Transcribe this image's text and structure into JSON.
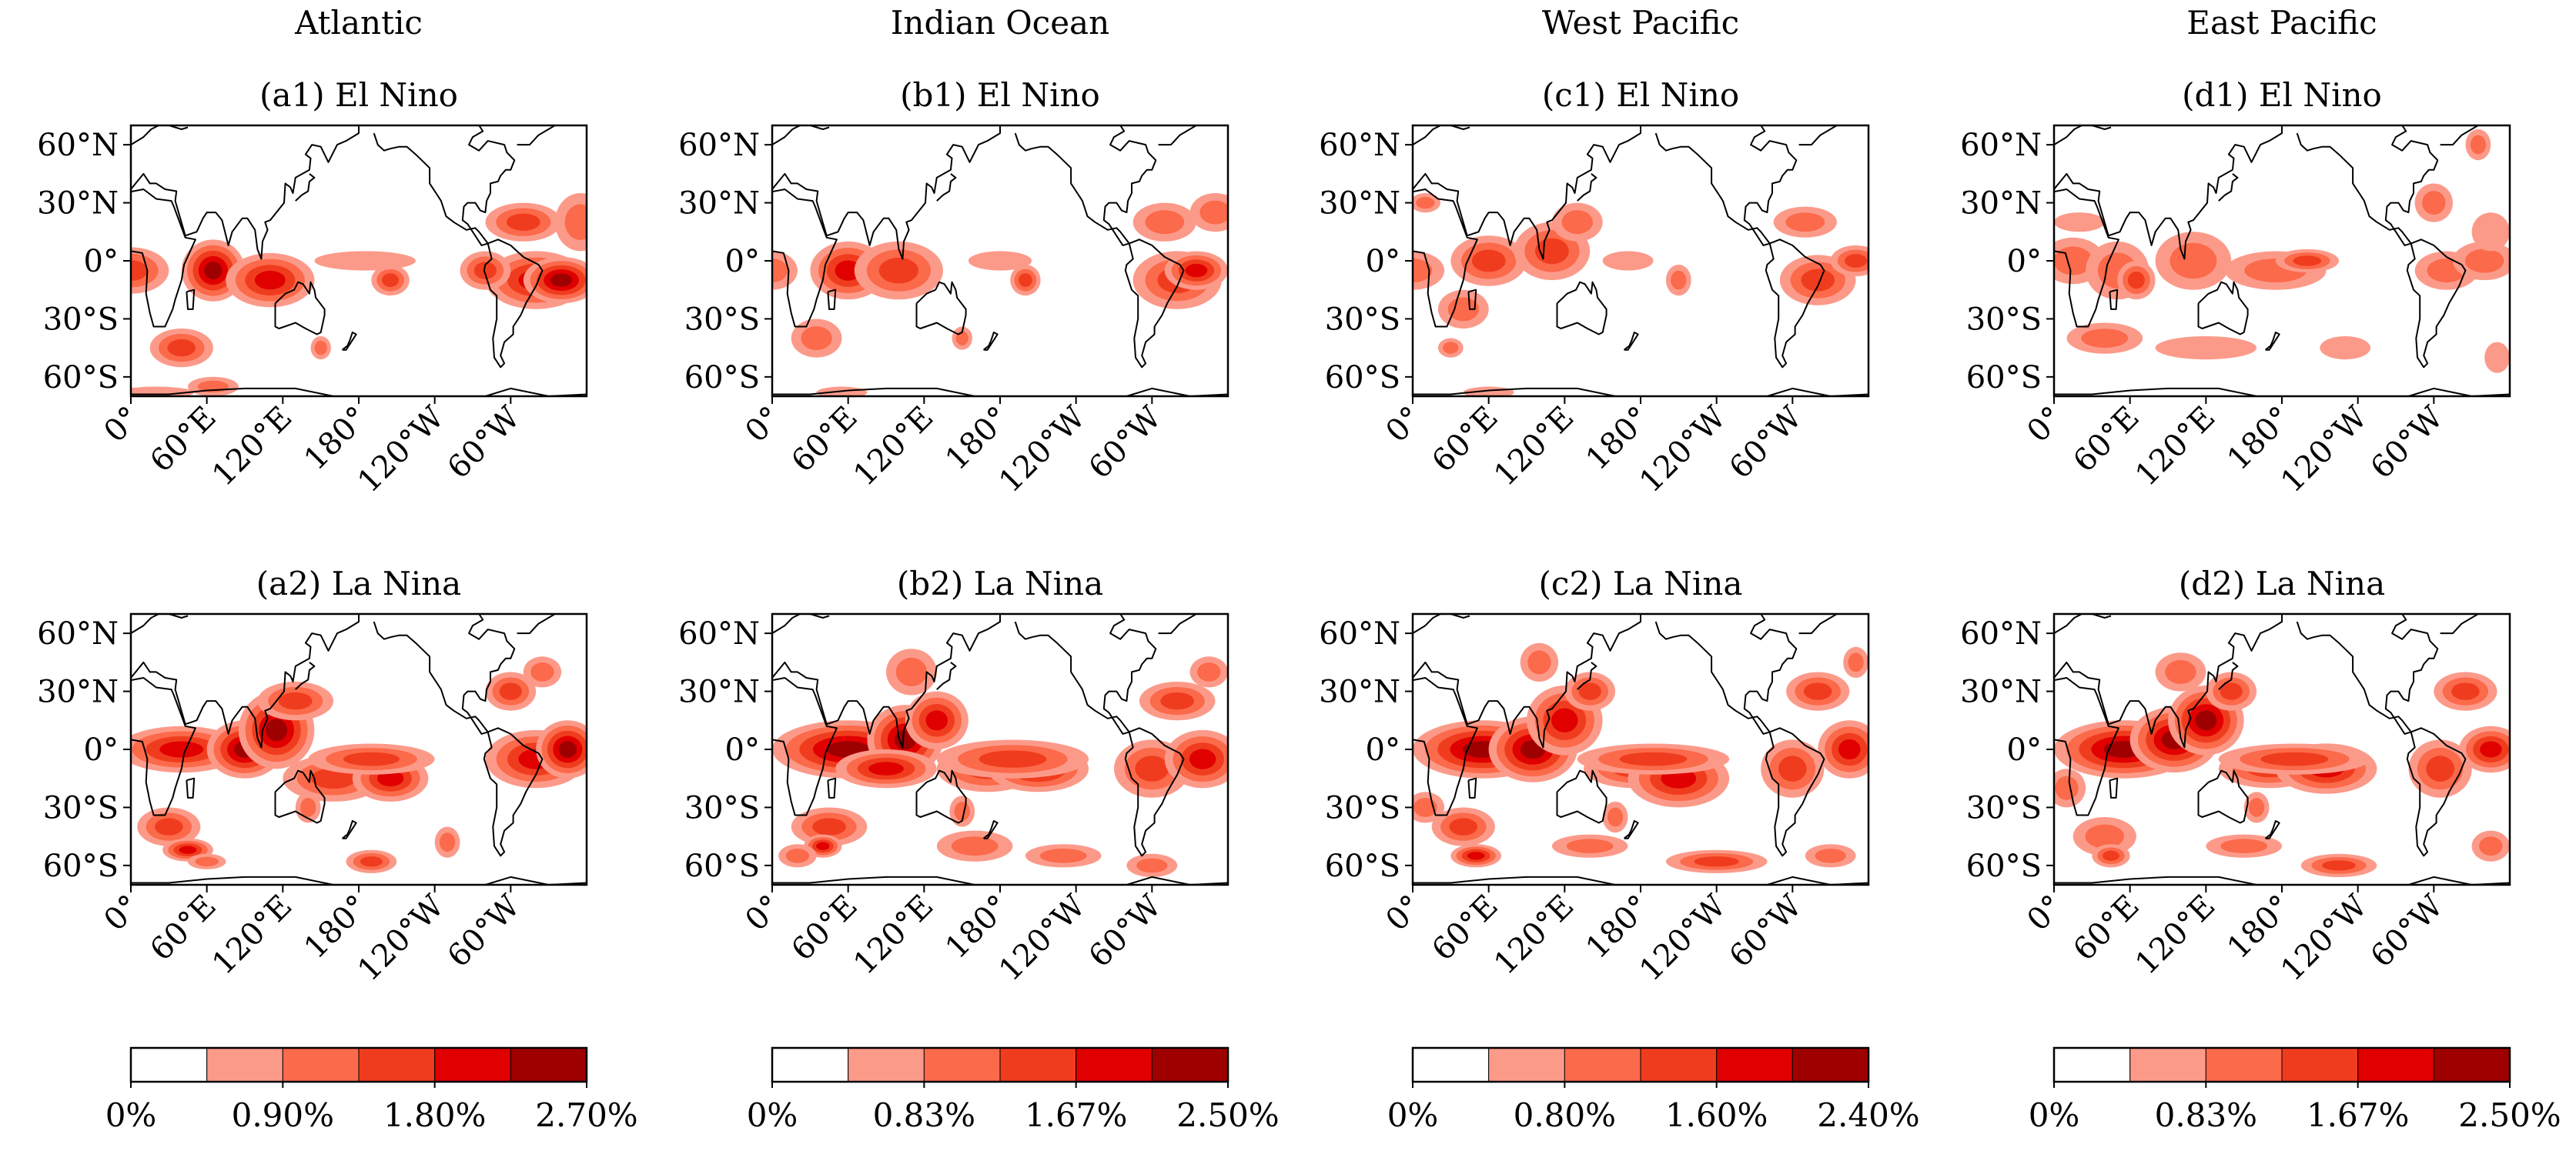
{
  "figure": {
    "columns": [
      {
        "title": "Atlantic",
        "colorbar": {
          "ticks": [
            "0%",
            "0.90%",
            "1.80%",
            "2.70%"
          ]
        }
      },
      {
        "title": "Indian Ocean",
        "colorbar": {
          "ticks": [
            "0%",
            "0.83%",
            "1.67%",
            "2.50%"
          ]
        }
      },
      {
        "title": "West Pacific",
        "colorbar": {
          "ticks": [
            "0%",
            "0.80%",
            "1.60%",
            "2.40%"
          ]
        }
      },
      {
        "title": "East Pacific",
        "colorbar": {
          "ticks": [
            "0%",
            "0.83%",
            "1.67%",
            "2.50%"
          ]
        }
      }
    ],
    "panel_titles": [
      [
        "(a1) El Nino",
        "(b1) El Nino",
        "(c1) El Nino",
        "(d1) El Nino"
      ],
      [
        "(a2) La Nina",
        "(b2) La Nina",
        "(c2) La Nina",
        "(d2) La Nina"
      ]
    ],
    "lat_ticks": [
      "60°N",
      "30°N",
      "0°",
      "30°S",
      "60°S"
    ],
    "lon_ticks": [
      "0°",
      "60°E",
      "120°E",
      "180°",
      "120°W",
      "60°W"
    ]
  },
  "chart_data": {
    "type": "heatmap",
    "description_of_fields": "filled contour maps of frequency percentage",
    "x_range": [
      0,
      360
    ],
    "y_range": [
      -70,
      70
    ],
    "lat_tick_values": [
      60,
      30,
      0,
      -30,
      -60
    ],
    "lon_tick_values": [
      0,
      60,
      120,
      180,
      240,
      300
    ],
    "colors": [
      "#ffffff",
      "#fc9a8a",
      "#fb6a4a",
      "#f03c1e",
      "#e00000",
      "#9e0000"
    ],
    "levels": [
      [
        0,
        0.45,
        0.9,
        1.35,
        1.8,
        2.25,
        2.7
      ],
      [
        0,
        0.42,
        0.83,
        1.25,
        1.67,
        2.08,
        2.5
      ],
      [
        0,
        0.4,
        0.8,
        1.2,
        1.6,
        2.0,
        2.4
      ],
      [
        0,
        0.42,
        0.83,
        1.25,
        1.67,
        2.08,
        2.5
      ]
    ],
    "panels": [
      [
        {
          "blobs": [
            [
              0,
              -5,
              30,
              12,
              3
            ],
            [
              65,
              -5,
              25,
              16,
              5
            ],
            [
              110,
              -10,
              35,
              14,
              4
            ],
            [
              40,
              -45,
              25,
              10,
              3
            ],
            [
              150,
              -45,
              8,
              6,
              2
            ],
            [
              205,
              -10,
              15,
              8,
              3
            ],
            [
              185,
              0,
              40,
              5,
              1
            ],
            [
              320,
              -10,
              40,
              15,
              4
            ],
            [
              310,
              20,
              30,
              10,
              3
            ],
            [
              355,
              20,
              20,
              15,
              2
            ],
            [
              340,
              -10,
              30,
              12,
              5
            ],
            [
              280,
              -5,
              20,
              10,
              3
            ],
            [
              65,
              -65,
              20,
              5,
              2
            ],
            [
              20,
              -68,
              30,
              3,
              1
            ]
          ]
        },
        {
          "blobs": [
            [
              0,
              -5,
              20,
              10,
              2
            ],
            [
              60,
              -5,
              30,
              15,
              4
            ],
            [
              100,
              -5,
              35,
              15,
              3
            ],
            [
              35,
              -40,
              20,
              10,
              2
            ],
            [
              150,
              -40,
              8,
              6,
              2
            ],
            [
              200,
              -10,
              12,
              8,
              3
            ],
            [
              180,
              0,
              25,
              5,
              1
            ],
            [
              320,
              -10,
              35,
              15,
              3
            ],
            [
              310,
              20,
              25,
              10,
              2
            ],
            [
              350,
              25,
              20,
              10,
              2
            ],
            [
              335,
              -5,
              25,
              10,
              4
            ],
            [
              55,
              -68,
              20,
              3,
              1
            ]
          ]
        },
        {
          "blobs": [
            [
              0,
              -5,
              25,
              10,
              2
            ],
            [
              60,
              0,
              30,
              13,
              3
            ],
            [
              110,
              5,
              30,
              15,
              3
            ],
            [
              130,
              20,
              20,
              10,
              2
            ],
            [
              40,
              -25,
              20,
              10,
              2
            ],
            [
              30,
              -45,
              10,
              5,
              2
            ],
            [
              210,
              -10,
              10,
              8,
              2
            ],
            [
              170,
              0,
              20,
              5,
              1
            ],
            [
              320,
              -10,
              30,
              13,
              3
            ],
            [
              310,
              20,
              25,
              8,
              2
            ],
            [
              350,
              0,
              20,
              8,
              3
            ],
            [
              10,
              30,
              12,
              5,
              2
            ],
            [
              60,
              -68,
              20,
              3,
              1
            ]
          ]
        },
        {
          "blobs": [
            [
              15,
              0,
              25,
              12,
              2
            ],
            [
              50,
              -5,
              25,
              15,
              2
            ],
            [
              65,
              -10,
              15,
              10,
              3
            ],
            [
              110,
              0,
              30,
              15,
              2
            ],
            [
              175,
              -5,
              40,
              10,
              2
            ],
            [
              200,
              0,
              25,
              6,
              3
            ],
            [
              40,
              -40,
              30,
              8,
              2
            ],
            [
              120,
              -45,
              40,
              6,
              1
            ],
            [
              230,
              -45,
              20,
              6,
              1
            ],
            [
              310,
              -5,
              25,
              10,
              2
            ],
            [
              340,
              0,
              25,
              10,
              2
            ],
            [
              300,
              30,
              15,
              10,
              2
            ],
            [
              345,
              15,
              15,
              10,
              1
            ],
            [
              20,
              20,
              20,
              5,
              1
            ],
            [
              335,
              60,
              10,
              8,
              2
            ],
            [
              350,
              -50,
              10,
              8,
              1
            ]
          ]
        }
      ],
      [
        {
          "blobs": [
            [
              40,
              0,
              50,
              12,
              4
            ],
            [
              90,
              0,
              30,
              15,
              5
            ],
            [
              115,
              10,
              30,
              20,
              5
            ],
            [
              130,
              25,
              30,
              10,
              3
            ],
            [
              160,
              -15,
              40,
              12,
              3
            ],
            [
              205,
              -15,
              30,
              12,
              4
            ],
            [
              190,
              -5,
              50,
              8,
              3
            ],
            [
              320,
              -5,
              40,
              15,
              4
            ],
            [
              345,
              0,
              25,
              15,
              5
            ],
            [
              300,
              30,
              20,
              10,
              3
            ],
            [
              325,
              40,
              15,
              8,
              2
            ],
            [
              30,
              -40,
              25,
              10,
              3
            ],
            [
              45,
              -52,
              20,
              6,
              4
            ],
            [
              190,
              -58,
              20,
              6,
              3
            ],
            [
              250,
              -48,
              10,
              8,
              2
            ],
            [
              60,
              -58,
              15,
              4,
              2
            ],
            [
              140,
              -30,
              10,
              8,
              2
            ]
          ]
        },
        {
          "blobs": [
            [
              60,
              0,
              60,
              15,
              5
            ],
            [
              105,
              5,
              30,
              18,
              5
            ],
            [
              130,
              15,
              25,
              15,
              4
            ],
            [
              90,
              -10,
              40,
              10,
              4
            ],
            [
              170,
              -10,
              40,
              12,
              3
            ],
            [
              210,
              -10,
              40,
              12,
              4
            ],
            [
              190,
              -5,
              60,
              10,
              3
            ],
            [
              300,
              -10,
              30,
              15,
              3
            ],
            [
              340,
              -5,
              30,
              15,
              4
            ],
            [
              320,
              25,
              30,
              10,
              3
            ],
            [
              345,
              40,
              15,
              8,
              2
            ],
            [
              110,
              40,
              20,
              12,
              2
            ],
            [
              45,
              -40,
              30,
              10,
              3
            ],
            [
              40,
              -50,
              15,
              6,
              4
            ],
            [
              160,
              -50,
              30,
              8,
              2
            ],
            [
              230,
              -55,
              30,
              6,
              2
            ],
            [
              300,
              -60,
              20,
              6,
              2
            ],
            [
              20,
              -55,
              15,
              6,
              2
            ],
            [
              150,
              -32,
              10,
              8,
              2
            ]
          ]
        },
        {
          "blobs": [
            [
              55,
              0,
              55,
              15,
              5
            ],
            [
              95,
              0,
              35,
              17,
              5
            ],
            [
              120,
              15,
              30,
              18,
              4
            ],
            [
              140,
              30,
              20,
              10,
              3
            ],
            [
              175,
              -10,
              40,
              10,
              3
            ],
            [
              210,
              -15,
              40,
              15,
              4
            ],
            [
              190,
              -5,
              60,
              8,
              3
            ],
            [
              300,
              -10,
              25,
              15,
              3
            ],
            [
              345,
              0,
              25,
              15,
              4
            ],
            [
              320,
              30,
              25,
              10,
              3
            ],
            [
              350,
              45,
              10,
              8,
              2
            ],
            [
              40,
              -40,
              25,
              10,
              3
            ],
            [
              50,
              -55,
              20,
              6,
              4
            ],
            [
              140,
              -50,
              30,
              6,
              2
            ],
            [
              240,
              -58,
              40,
              6,
              3
            ],
            [
              330,
              -55,
              20,
              6,
              2
            ],
            [
              10,
              -30,
              15,
              8,
              2
            ],
            [
              100,
              45,
              15,
              10,
              2
            ],
            [
              160,
              -35,
              10,
              8,
              2
            ]
          ]
        },
        {
          "blobs": [
            [
              55,
              0,
              55,
              15,
              5
            ],
            [
              95,
              5,
              35,
              17,
              5
            ],
            [
              120,
              15,
              30,
              18,
              5
            ],
            [
              140,
              30,
              20,
              10,
              3
            ],
            [
              170,
              -10,
              40,
              10,
              3
            ],
            [
              215,
              -10,
              40,
              13,
              4
            ],
            [
              190,
              -5,
              60,
              8,
              3
            ],
            [
              305,
              -10,
              25,
              15,
              3
            ],
            [
              345,
              0,
              25,
              12,
              4
            ],
            [
              325,
              30,
              25,
              10,
              3
            ],
            [
              10,
              -20,
              15,
              10,
              2
            ],
            [
              40,
              -45,
              25,
              10,
              2
            ],
            [
              45,
              -55,
              15,
              6,
              3
            ],
            [
              150,
              -50,
              30,
              6,
              2
            ],
            [
              225,
              -60,
              30,
              6,
              3
            ],
            [
              345,
              -50,
              15,
              8,
              2
            ],
            [
              100,
              40,
              20,
              10,
              2
            ],
            [
              160,
              -30,
              10,
              8,
              2
            ]
          ]
        }
      ]
    ]
  }
}
